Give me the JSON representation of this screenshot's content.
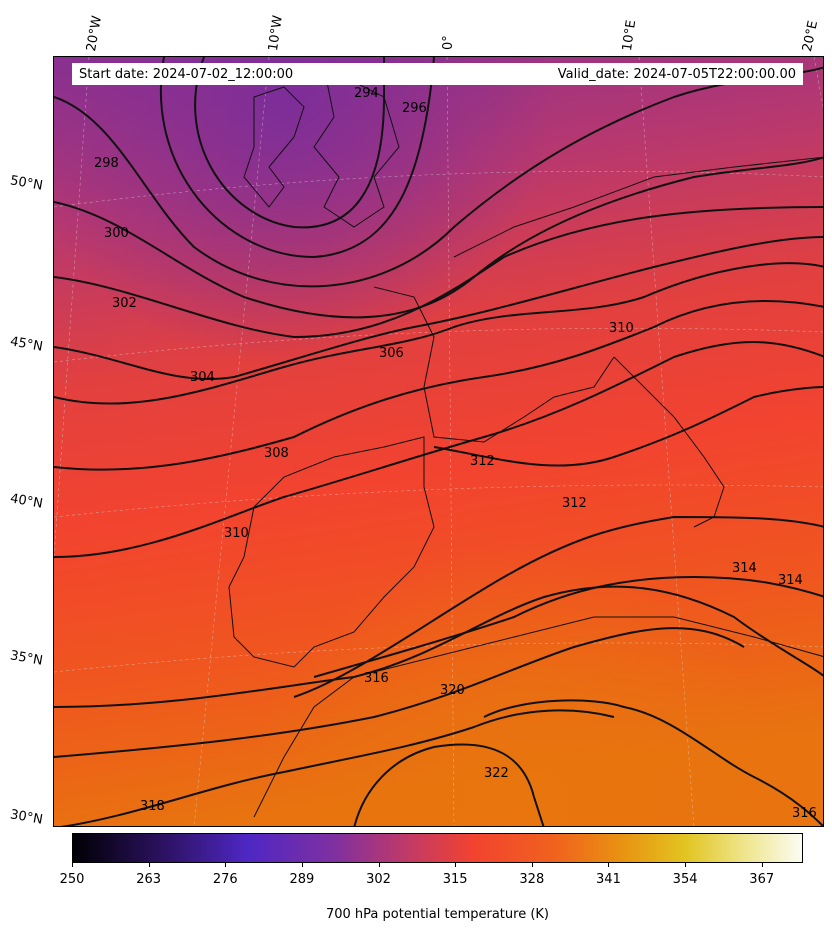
{
  "map": {
    "start_date": "Start date: 2024-07-02_12:00:00",
    "valid_date": "Valid_date: 2024-07-05T22:00:00.00",
    "lon_labels": [
      "20°W",
      "10°W",
      "0°",
      "10°E",
      "20°E"
    ],
    "lat_labels": [
      "50°N",
      "45°N",
      "40°N",
      "35°N",
      "30°N"
    ],
    "contour_labels": [
      "294",
      "296",
      "298",
      "300",
      "302",
      "304",
      "306",
      "308",
      "310",
      "310",
      "312",
      "312",
      "314",
      "314",
      "316",
      "316",
      "318",
      "320",
      "322"
    ],
    "colors": {
      "cold": "#7f2e96",
      "mid": "#f2432f",
      "warm": "#e8700f",
      "contour": "#111111"
    }
  },
  "colorbar": {
    "title": "700 hPa potential temperature (K)",
    "ticks": [
      "250",
      "263",
      "276",
      "289",
      "302",
      "315",
      "328",
      "341",
      "354",
      "367"
    ]
  }
}
